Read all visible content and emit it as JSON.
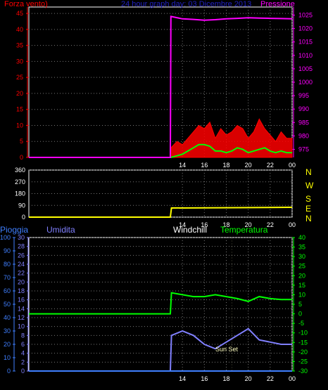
{
  "header": {
    "left_label": "Forza vento)",
    "title": "24 hour graph day: 03 Dicembre 2013",
    "right_label": "Pressione"
  },
  "direction_letters": [
    "N",
    "W",
    "S",
    "E",
    "N"
  ],
  "bottom_header": {
    "rain_label": "Pioggia",
    "humidity_label": "Umidita",
    "windchill_label": "Windchill",
    "temperature_label": "Temperatura"
  },
  "annotation": "Sun Set",
  "colors": {
    "wind": "#ff0000",
    "wind_avg": "#00ff00",
    "pressure": "#ff00ff",
    "direction": "#ffff00",
    "temperature": "#00ff00",
    "humidity": "#8080ff",
    "rain": "#3f7fff",
    "title": "#2020c0"
  },
  "chart_data": [
    {
      "type": "line",
      "title": "24 hour graph day: 03 Dicembre 2013",
      "x_ticks": [
        "14",
        "16",
        "18",
        "20",
        "22",
        "00"
      ],
      "y_left": {
        "label": "Forza vento)",
        "ticks": [
          0,
          5,
          10,
          15,
          20,
          25,
          30,
          35,
          40,
          45
        ],
        "range": [
          0,
          47
        ]
      },
      "y_right": {
        "label": "Pressione",
        "ticks": [
          975,
          980,
          985,
          990,
          995,
          1000,
          1005,
          1010,
          1015,
          1020,
          1025
        ],
        "range": [
          972,
          1028
        ]
      },
      "series": [
        {
          "name": "wind_gust",
          "axis": "left",
          "x": [
            0,
            12.9,
            12.95,
            13.5,
            14,
            14.5,
            15,
            15.5,
            16,
            16.5,
            17,
            17.5,
            18,
            18.5,
            19,
            19.5,
            20,
            20.5,
            21,
            21.5,
            22,
            22.5,
            23,
            23.5,
            24
          ],
          "y": [
            0,
            0,
            3,
            5,
            4,
            6,
            8,
            10,
            9,
            11,
            6,
            9,
            7,
            8,
            10,
            9,
            6,
            8,
            12,
            9,
            7,
            5,
            8,
            6,
            6
          ]
        },
        {
          "name": "wind_avg",
          "axis": "left",
          "x": [
            0,
            12.9,
            12.95,
            13.5,
            14,
            14.5,
            15,
            15.5,
            16,
            16.5,
            17,
            17.5,
            18,
            18.5,
            19,
            19.5,
            20,
            20.5,
            21,
            21.5,
            22,
            22.5,
            23,
            23.5,
            24
          ],
          "y": [
            0,
            0,
            0,
            0.5,
            1,
            2,
            3,
            4,
            4,
            3.5,
            2,
            2,
            1.5,
            2,
            3,
            2.5,
            1.5,
            2,
            2.5,
            3,
            2,
            1.5,
            2,
            1.5,
            1.5
          ]
        },
        {
          "name": "pressure",
          "axis": "right",
          "x": [
            0,
            12.9,
            12.95,
            14,
            15,
            16,
            17,
            18,
            19,
            20,
            21,
            22,
            23,
            24
          ],
          "y": [
            972,
            972,
            1024.5,
            1023.6,
            1023.4,
            1023.1,
            1023.3,
            1023.6,
            1023.8,
            1024.0,
            1023.9,
            1023.8,
            1023.7,
            1023.6
          ]
        }
      ]
    },
    {
      "type": "line",
      "x_ticks": [
        "14",
        "16",
        "18",
        "20",
        "22",
        "00"
      ],
      "y_left": {
        "ticks": [
          0,
          90,
          180,
          270,
          360
        ],
        "range": [
          0,
          360
        ]
      },
      "y_right": {
        "ticks": [
          "N",
          "W",
          "S",
          "E",
          "N"
        ]
      },
      "series": [
        {
          "name": "wind_direction",
          "x": [
            0,
            12.9,
            13.0,
            24
          ],
          "y": [
            0,
            0,
            70,
            75
          ]
        }
      ]
    },
    {
      "type": "line",
      "x_ticks": [
        "14",
        "16",
        "18",
        "20",
        "22",
        "00"
      ],
      "y_rain": {
        "label": "Pioggia",
        "ticks": [
          0,
          10,
          20,
          30,
          40,
          50,
          60,
          70,
          80,
          90,
          100
        ],
        "range": [
          0,
          100
        ]
      },
      "y_humidity": {
        "label": "Umidita",
        "ticks": [
          0,
          2,
          4,
          6,
          8,
          10,
          12,
          14,
          16,
          18,
          20,
          22,
          24,
          26,
          28,
          30
        ],
        "range": [
          0,
          30
        ]
      },
      "y_temperature": {
        "label": "Temperatura",
        "ticks": [
          -30,
          -25,
          -20,
          -15,
          -10,
          -5,
          0,
          5,
          10,
          15,
          20,
          25,
          30,
          35,
          40
        ],
        "range": [
          -30,
          40
        ]
      },
      "annotations": [
        {
          "text": "Sun Set",
          "x": 18.5
        }
      ],
      "series": [
        {
          "name": "Temperatura",
          "axis": "temperature",
          "x": [
            0,
            12.9,
            13.0,
            14,
            15,
            16,
            17,
            18,
            19,
            20,
            21,
            22,
            23,
            24
          ],
          "y": [
            0,
            0,
            11,
            10,
            9,
            9,
            10,
            9,
            8,
            6.5,
            9,
            8,
            7.5,
            7.5
          ]
        },
        {
          "name": "Umidita",
          "axis": "humidity",
          "x": [
            0,
            12.9,
            13.0,
            14,
            15,
            16,
            17,
            18,
            19,
            20,
            21,
            22,
            23,
            24
          ],
          "y": [
            0,
            0,
            8,
            9,
            8,
            6,
            5,
            6.5,
            8,
            9.5,
            7,
            6.5,
            6,
            6
          ]
        },
        {
          "name": "Pioggia",
          "axis": "rain",
          "x": [
            0,
            24
          ],
          "y": [
            0,
            0
          ]
        }
      ]
    }
  ]
}
